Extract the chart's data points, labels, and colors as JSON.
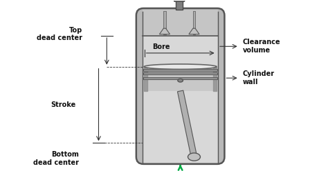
{
  "bg_color": "#ffffff",
  "cylinder_outer_color": "#b8b8b8",
  "cylinder_inner_top_color": "#c8c8c8",
  "cylinder_inner_main_color": "#d4d4d4",
  "piston_top_color": "#e8e8e8",
  "piston_body_color": "#c0c0c0",
  "piston_ring_color": "#909090",
  "text_color": "#111111",
  "line_color": "#333333",
  "labels": {
    "top_dead_center": "Top\ndead center",
    "stroke": "Stroke",
    "bottom_dead_center": "Bottom\ndead center",
    "bore": "Bore",
    "clearance_volume": "Clearance\nvolume",
    "cylinder_wall": "Cylinder\nwall"
  },
  "figsize": [
    4.74,
    2.48
  ],
  "dpi": 100
}
